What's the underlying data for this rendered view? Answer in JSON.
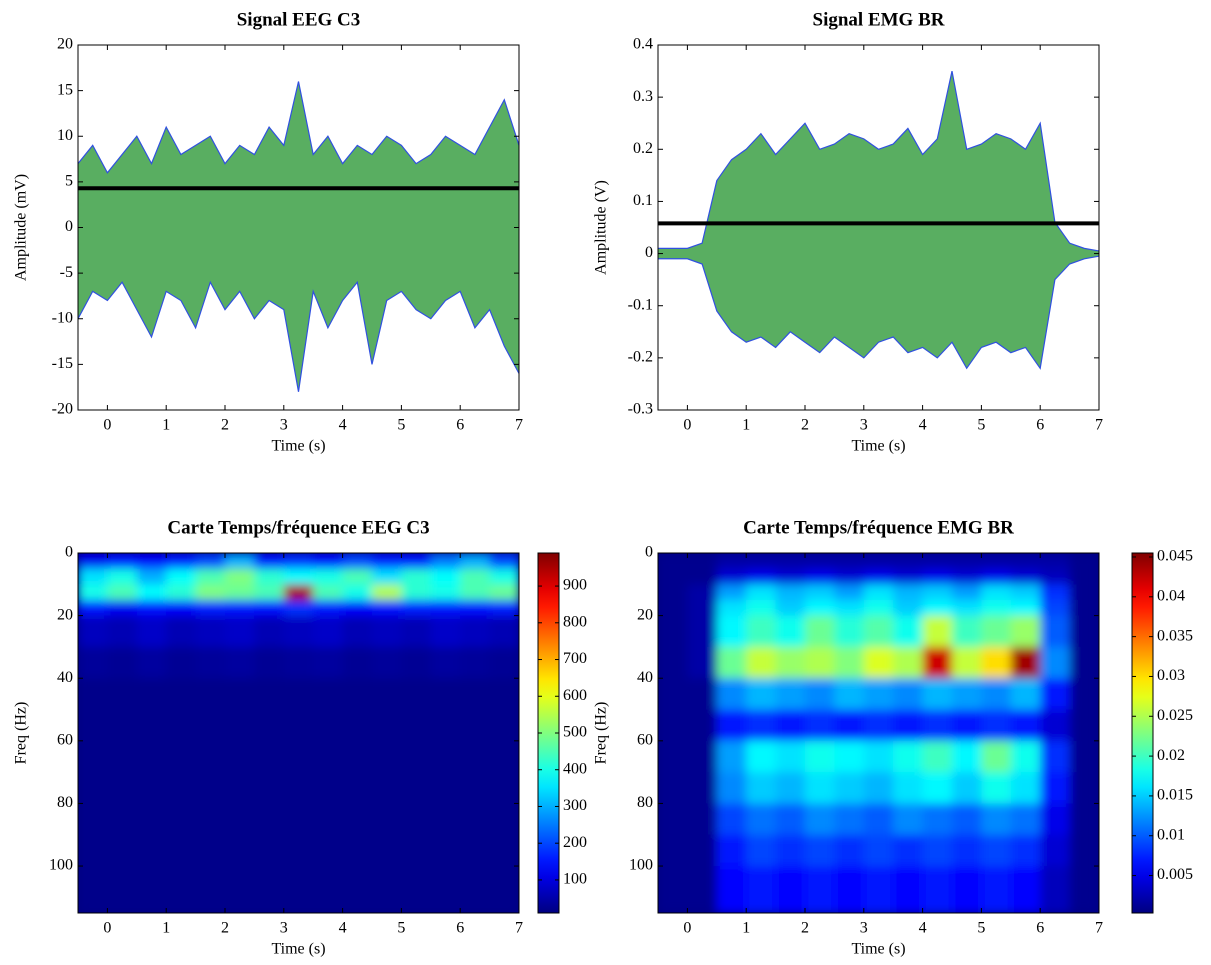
{
  "chart_data": [
    {
      "type": "signal",
      "title": "Signal EEG C3",
      "xlabel": "Time (s)",
      "ylabel": "Amplitude (mV)",
      "xlim": [
        -0.5,
        7
      ],
      "ylim": [
        -20,
        20
      ],
      "xticks": [
        0,
        1,
        2,
        3,
        4,
        5,
        6,
        7
      ],
      "yticks": [
        -20,
        -15,
        -10,
        -5,
        0,
        5,
        10,
        15,
        20
      ],
      "x": [
        -0.5,
        -0.25,
        0,
        0.25,
        0.5,
        0.75,
        1,
        1.25,
        1.5,
        1.75,
        2,
        2.25,
        2.5,
        2.75,
        3,
        3.25,
        3.5,
        3.75,
        4,
        4.25,
        4.5,
        4.75,
        5,
        5.25,
        5.5,
        5.75,
        6,
        6.25,
        6.5,
        6.75,
        7
      ],
      "upper": [
        7,
        9,
        6,
        8,
        10,
        7,
        11,
        8,
        9,
        10,
        7,
        9,
        8,
        11,
        9,
        16,
        8,
        10,
        7,
        9,
        8,
        10,
        9,
        7,
        8,
        10,
        9,
        8,
        11,
        14,
        9
      ],
      "lower": [
        -10,
        -7,
        -8,
        -6,
        -9,
        -12,
        -7,
        -8,
        -11,
        -6,
        -9,
        -7,
        -10,
        -8,
        -9,
        -18,
        -7,
        -11,
        -8,
        -6,
        -15,
        -8,
        -7,
        -9,
        -10,
        -8,
        -7,
        -11,
        -9,
        -13,
        -16
      ],
      "threshold": 4.3,
      "color": "#2f9a3a",
      "line_color": "#3050e0",
      "threshold_color": "#000000"
    },
    {
      "type": "signal",
      "title": "Signal EMG BR",
      "xlabel": "Time (s)",
      "ylabel": "Amplitude (V)",
      "xlim": [
        -0.5,
        7
      ],
      "ylim": [
        -0.3,
        0.4
      ],
      "xticks": [
        0,
        1,
        2,
        3,
        4,
        5,
        6,
        7
      ],
      "yticks": [
        -0.3,
        -0.2,
        -0.1,
        0,
        0.1,
        0.2,
        0.3,
        0.4
      ],
      "x": [
        -0.5,
        -0.25,
        0,
        0.25,
        0.5,
        0.75,
        1,
        1.25,
        1.5,
        1.75,
        2,
        2.25,
        2.5,
        2.75,
        3,
        3.25,
        3.5,
        3.75,
        4,
        4.25,
        4.5,
        4.75,
        5,
        5.25,
        5.5,
        5.75,
        6,
        6.25,
        6.5,
        6.75,
        7
      ],
      "upper": [
        0.01,
        0.01,
        0.01,
        0.02,
        0.14,
        0.18,
        0.2,
        0.23,
        0.19,
        0.22,
        0.25,
        0.2,
        0.21,
        0.23,
        0.22,
        0.2,
        0.21,
        0.24,
        0.19,
        0.22,
        0.35,
        0.2,
        0.21,
        0.23,
        0.22,
        0.2,
        0.25,
        0.06,
        0.02,
        0.01,
        0.005
      ],
      "lower": [
        -0.01,
        -0.01,
        -0.01,
        -0.02,
        -0.11,
        -0.15,
        -0.17,
        -0.16,
        -0.18,
        -0.15,
        -0.17,
        -0.19,
        -0.16,
        -0.18,
        -0.2,
        -0.17,
        -0.16,
        -0.19,
        -0.18,
        -0.2,
        -0.17,
        -0.22,
        -0.18,
        -0.17,
        -0.19,
        -0.18,
        -0.22,
        -0.05,
        -0.02,
        -0.01,
        -0.005
      ],
      "threshold": 0.058,
      "color": "#2f9a3a",
      "line_color": "#3050e0",
      "threshold_color": "#000000"
    },
    {
      "type": "heatmap",
      "title": "Carte Temps/fréquence EEG C3",
      "xlabel": "Time (s)",
      "ylabel": "Freq (Hz)",
      "xlim": [
        -0.5,
        7
      ],
      "ylim": [
        0,
        115
      ],
      "yreverse": true,
      "xticks": [
        0,
        1,
        2,
        3,
        4,
        5,
        6,
        7
      ],
      "yticks": [
        0,
        20,
        40,
        60,
        80,
        100
      ],
      "colormap": "jet",
      "clim": [
        10,
        990
      ],
      "cticks": [
        100,
        200,
        300,
        400,
        500,
        600,
        700,
        800,
        900
      ],
      "xbins": [
        -0.5,
        0,
        0.5,
        1,
        1.5,
        2,
        2.5,
        3,
        3.5,
        4,
        4.5,
        5,
        5.5,
        6,
        6.5,
        7
      ],
      "ybins": [
        0,
        5,
        10,
        15,
        20,
        30,
        40,
        50,
        60,
        70,
        80,
        90,
        100,
        115
      ],
      "values": [
        [
          120,
          150,
          130,
          160,
          200,
          300,
          150,
          180,
          140,
          200,
          160,
          150,
          250,
          300,
          200
        ],
        [
          350,
          400,
          300,
          380,
          450,
          500,
          420,
          380,
          400,
          450,
          350,
          420,
          380,
          450,
          400
        ],
        [
          400,
          450,
          380,
          420,
          500,
          480,
          450,
          950,
          450,
          400,
          550,
          420,
          400,
          450,
          480
        ],
        [
          150,
          120,
          140,
          130,
          160,
          150,
          140,
          180,
          150,
          130,
          140,
          160,
          150,
          140,
          160
        ],
        [
          70,
          60,
          80,
          60,
          70,
          80,
          60,
          70,
          80,
          60,
          70,
          60,
          80,
          70,
          60
        ],
        [
          35,
          30,
          40,
          30,
          35,
          40,
          30,
          35,
          40,
          30,
          35,
          30,
          40,
          35,
          30
        ],
        [
          20,
          20,
          20,
          20,
          20,
          20,
          20,
          20,
          20,
          20,
          20,
          20,
          20,
          20,
          20
        ],
        [
          20,
          20,
          20,
          20,
          20,
          20,
          20,
          20,
          20,
          20,
          20,
          20,
          20,
          20,
          20
        ],
        [
          20,
          20,
          20,
          20,
          20,
          20,
          20,
          20,
          20,
          20,
          20,
          20,
          20,
          20,
          20
        ],
        [
          20,
          20,
          20,
          20,
          20,
          20,
          20,
          20,
          20,
          20,
          20,
          20,
          20,
          20,
          20
        ],
        [
          20,
          20,
          20,
          20,
          20,
          20,
          20,
          20,
          20,
          20,
          20,
          20,
          20,
          20,
          20
        ],
        [
          20,
          20,
          20,
          20,
          20,
          20,
          20,
          20,
          20,
          20,
          20,
          20,
          20,
          20,
          20
        ],
        [
          20,
          20,
          20,
          20,
          20,
          20,
          20,
          20,
          20,
          20,
          20,
          20,
          20,
          20,
          20
        ]
      ]
    },
    {
      "type": "heatmap",
      "title": "Carte Temps/fréquence EMG BR",
      "xlabel": "Time (s)",
      "ylabel": "Freq (Hz)",
      "xlim": [
        -0.5,
        7
      ],
      "ylim": [
        0,
        115
      ],
      "yreverse": true,
      "xticks": [
        0,
        1,
        2,
        3,
        4,
        5,
        6,
        7
      ],
      "yticks": [
        0,
        20,
        40,
        60,
        80,
        100
      ],
      "colormap": "jet",
      "clim": [
        0.0003,
        0.0455
      ],
      "cticks": [
        0.005,
        0.01,
        0.015,
        0.02,
        0.025,
        0.03,
        0.035,
        0.04,
        0.045
      ],
      "xbins": [
        -0.5,
        0,
        0.5,
        1,
        1.5,
        2,
        2.5,
        3,
        3.5,
        4,
        4.5,
        5,
        5.5,
        6,
        6.5,
        7
      ],
      "ybins": [
        0,
        5,
        10,
        15,
        20,
        30,
        40,
        50,
        60,
        70,
        80,
        90,
        100,
        115
      ],
      "values": [
        [
          0.001,
          0.001,
          0.002,
          0.002,
          0.002,
          0.002,
          0.002,
          0.002,
          0.002,
          0.002,
          0.002,
          0.002,
          0.002,
          0.002,
          0.001
        ],
        [
          0.001,
          0.001,
          0.004,
          0.005,
          0.004,
          0.005,
          0.004,
          0.005,
          0.004,
          0.005,
          0.004,
          0.005,
          0.004,
          0.003,
          0.001
        ],
        [
          0.001,
          0.002,
          0.013,
          0.016,
          0.014,
          0.015,
          0.013,
          0.016,
          0.014,
          0.015,
          0.013,
          0.016,
          0.015,
          0.008,
          0.001
        ],
        [
          0.001,
          0.002,
          0.016,
          0.018,
          0.015,
          0.017,
          0.016,
          0.018,
          0.015,
          0.017,
          0.016,
          0.018,
          0.017,
          0.009,
          0.001
        ],
        [
          0.001,
          0.002,
          0.017,
          0.02,
          0.018,
          0.022,
          0.019,
          0.021,
          0.018,
          0.026,
          0.02,
          0.022,
          0.024,
          0.01,
          0.001
        ],
        [
          0.001,
          0.002,
          0.022,
          0.026,
          0.024,
          0.025,
          0.023,
          0.027,
          0.025,
          0.042,
          0.026,
          0.03,
          0.044,
          0.012,
          0.001
        ],
        [
          0.001,
          0.001,
          0.012,
          0.014,
          0.013,
          0.012,
          0.014,
          0.013,
          0.012,
          0.014,
          0.013,
          0.012,
          0.014,
          0.007,
          0.001
        ],
        [
          0.001,
          0.001,
          0.007,
          0.008,
          0.007,
          0.008,
          0.007,
          0.008,
          0.007,
          0.008,
          0.007,
          0.008,
          0.007,
          0.004,
          0.001
        ],
        [
          0.001,
          0.001,
          0.013,
          0.017,
          0.016,
          0.018,
          0.017,
          0.016,
          0.018,
          0.02,
          0.017,
          0.022,
          0.018,
          0.008,
          0.001
        ],
        [
          0.001,
          0.001,
          0.012,
          0.015,
          0.014,
          0.016,
          0.015,
          0.014,
          0.016,
          0.017,
          0.015,
          0.018,
          0.016,
          0.007,
          0.001
        ],
        [
          0.001,
          0.001,
          0.009,
          0.011,
          0.01,
          0.012,
          0.011,
          0.01,
          0.012,
          0.011,
          0.01,
          0.012,
          0.011,
          0.005,
          0.001
        ],
        [
          0.001,
          0.001,
          0.007,
          0.009,
          0.008,
          0.009,
          0.008,
          0.009,
          0.008,
          0.009,
          0.008,
          0.009,
          0.008,
          0.004,
          0.001
        ],
        [
          0.001,
          0.001,
          0.006,
          0.007,
          0.006,
          0.007,
          0.006,
          0.007,
          0.006,
          0.007,
          0.006,
          0.007,
          0.006,
          0.003,
          0.001
        ]
      ]
    }
  ]
}
